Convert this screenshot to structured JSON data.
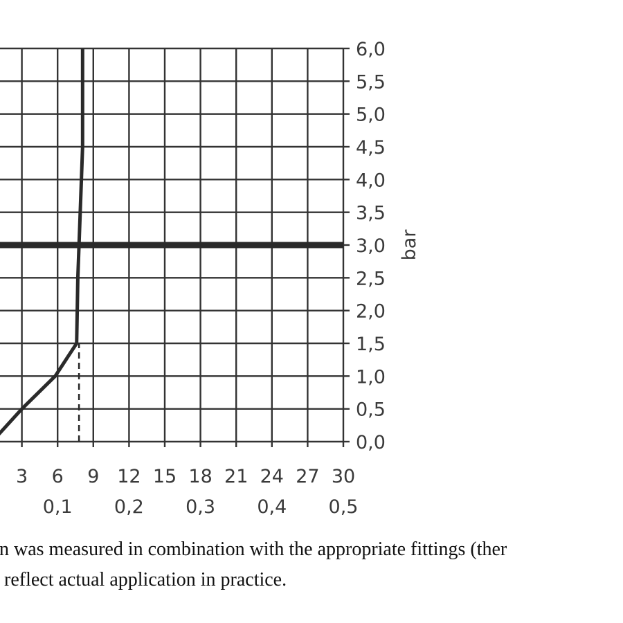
{
  "chart_data": {
    "type": "line",
    "ylabel": "bar",
    "y_ticks": [
      "0,0",
      "0,5",
      "1,0",
      "1,5",
      "2,0",
      "2,5",
      "3,0",
      "3,5",
      "4,0",
      "4,5",
      "5,0",
      "5,5",
      "6,0"
    ],
    "ylim": [
      0,
      6
    ],
    "x_ticks_primary": [
      "3",
      "6",
      "9",
      "12",
      "15",
      "18",
      "21",
      "24",
      "27",
      "30"
    ],
    "x_ticks_secondary": [
      "0,1",
      "0,2",
      "0,3",
      "0,4",
      "0,5"
    ],
    "xlim": [
      0,
      30
    ],
    "grid": true,
    "reference_line": {
      "y": 3.0
    },
    "marker_line": {
      "x": 7.8,
      "y_from": 0,
      "y_to": 1.5,
      "style": "dashed"
    },
    "series": [
      {
        "points": [
          {
            "x": 3.0,
            "y": 0.5
          },
          {
            "x": 5.8,
            "y": 1.0
          },
          {
            "x": 7.6,
            "y": 1.5
          },
          {
            "x": 7.7,
            "y": 2.5
          },
          {
            "x": 7.9,
            "y": 3.5
          },
          {
            "x": 8.1,
            "y": 4.5
          },
          {
            "x": 8.1,
            "y": 6.0
          }
        ]
      }
    ]
  },
  "caption": {
    "line1": "on was measured in combination with the appropriate fittings (ther",
    "line2": "o reflect actual application in practice."
  }
}
